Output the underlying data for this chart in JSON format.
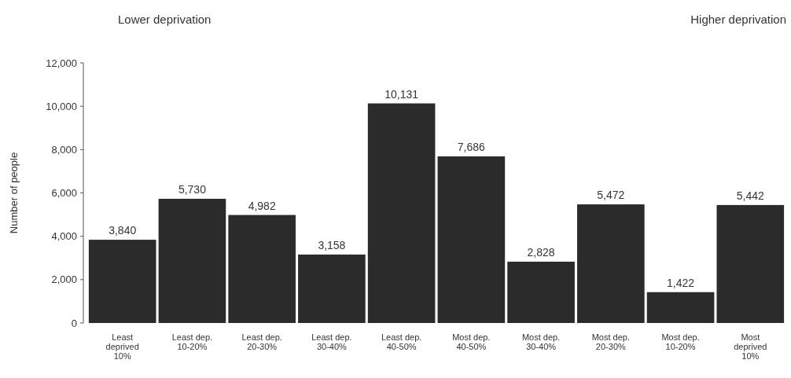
{
  "chart_data": {
    "type": "bar",
    "ylabel": "Number of people",
    "categories": [
      "Least deprived 10%",
      "Least dep. 10-20%",
      "Least dep. 20-30%",
      "Least dep. 30-40%",
      "Least dep. 40-50%",
      "Most dep. 40-50%",
      "Most dep. 30-40%",
      "Most dep. 20-30%",
      "Most dep. 10-20%",
      "Most deprived 10%"
    ],
    "values": [
      3840,
      5730,
      4982,
      3158,
      10131,
      7686,
      2828,
      5472,
      1422,
      5442
    ],
    "color": "#2b2b2b",
    "ylim": [
      0,
      12000
    ],
    "yticks": [
      {
        "value": 0,
        "label": "0"
      },
      {
        "value": 2000,
        "label": "2,000"
      },
      {
        "value": 4000,
        "label": "4,000"
      },
      {
        "value": 6000,
        "label": "6,000"
      },
      {
        "value": 8000,
        "label": "8,000"
      },
      {
        "value": 10000,
        "label": "10,000"
      },
      {
        "value": 12000,
        "label": "12,000"
      }
    ],
    "value_labels": [
      "3,840",
      "5,730",
      "4,982",
      "3,158",
      "10,131",
      "7,686",
      "2,828",
      "5,472",
      "1,422",
      "5,442"
    ],
    "annotations": [
      "Lower deprivation",
      "Higher deprivation"
    ]
  }
}
